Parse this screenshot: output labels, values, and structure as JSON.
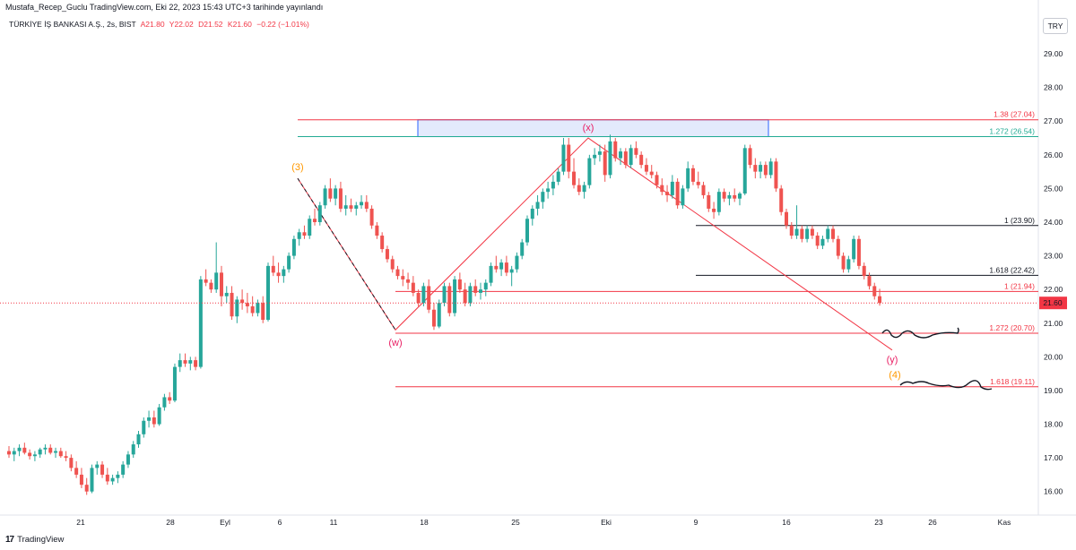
{
  "header": {
    "publisher": "Mustafa_Recep_Guclu TradingView.com, Eki 22, 2023 15:43 UTC+3 tarihinde yayınlandı"
  },
  "symbol": {
    "name": "TÜRKİYE İŞ BANKASI A.Ş., 2s, BIST",
    "open": "A21.80",
    "high": "Y22.02",
    "low": "D21.52",
    "close": "K21.60",
    "change": "−0.22 (−1.01%)"
  },
  "currency": "TRY",
  "footer": {
    "brand": "TradingView",
    "logo_glyph": "17"
  },
  "colors": {
    "up": "#26a69a",
    "down": "#ef5350",
    "fib_red": "#f23645",
    "fib_teal": "#22ab94",
    "fib_gray": "#131722",
    "zone_fill": "#e3eafc",
    "zone_border": "#2962ff",
    "wave_orange": "#ff9800",
    "wave_pink": "#e91e63",
    "last_price": "#f23645"
  },
  "chart_data": {
    "type": "candlestick",
    "interval": "2s",
    "x_ticks": [
      "21",
      "28",
      "Eyl",
      "6",
      "11",
      "18",
      "25",
      "Eki",
      "9",
      "16",
      "23",
      "26",
      "Kas"
    ],
    "y_ticks": [
      "29.00",
      "28.00",
      "27.00",
      "26.00",
      "25.00",
      "24.00",
      "23.00",
      "22.00",
      "21.00",
      "20.00",
      "19.00",
      "18.00",
      "17.00",
      "16.00"
    ],
    "ylim": [
      15.3,
      30.2
    ],
    "last_price": 21.6,
    "last_price_label": "21.60",
    "candles": [
      [
        17.2,
        17.35,
        17.0,
        17.1
      ],
      [
        17.1,
        17.3,
        16.9,
        17.2
      ],
      [
        17.2,
        17.4,
        17.05,
        17.3
      ],
      [
        17.3,
        17.45,
        17.1,
        17.15
      ],
      [
        17.15,
        17.25,
        16.95,
        17.05
      ],
      [
        17.05,
        17.2,
        16.9,
        17.1
      ],
      [
        17.1,
        17.3,
        17.0,
        17.25
      ],
      [
        17.25,
        17.4,
        17.1,
        17.3
      ],
      [
        17.3,
        17.4,
        17.1,
        17.15
      ],
      [
        17.15,
        17.3,
        17.0,
        17.2
      ],
      [
        17.2,
        17.3,
        17.0,
        17.05
      ],
      [
        17.05,
        17.2,
        16.9,
        17.0
      ],
      [
        17.0,
        17.1,
        16.6,
        16.7
      ],
      [
        16.7,
        16.9,
        16.4,
        16.5
      ],
      [
        16.5,
        16.7,
        16.1,
        16.2
      ],
      [
        16.2,
        16.4,
        15.9,
        16.0
      ],
      [
        16.0,
        16.8,
        15.95,
        16.7
      ],
      [
        16.7,
        16.9,
        16.5,
        16.8
      ],
      [
        16.8,
        16.9,
        16.4,
        16.5
      ],
      [
        16.5,
        16.7,
        16.2,
        16.3
      ],
      [
        16.3,
        16.5,
        16.2,
        16.4
      ],
      [
        16.4,
        16.6,
        16.25,
        16.5
      ],
      [
        16.5,
        16.9,
        16.4,
        16.8
      ],
      [
        16.8,
        17.2,
        16.7,
        17.1
      ],
      [
        17.1,
        17.5,
        17.0,
        17.4
      ],
      [
        17.4,
        17.8,
        17.3,
        17.7
      ],
      [
        17.7,
        18.2,
        17.6,
        18.1
      ],
      [
        18.1,
        18.4,
        17.9,
        18.2
      ],
      [
        18.2,
        18.4,
        17.9,
        18.0
      ],
      [
        18.0,
        18.6,
        17.95,
        18.5
      ],
      [
        18.5,
        18.9,
        18.4,
        18.8
      ],
      [
        18.8,
        18.95,
        18.6,
        18.7
      ],
      [
        18.7,
        19.8,
        18.65,
        19.7
      ],
      [
        19.7,
        20.1,
        19.55,
        19.9
      ],
      [
        19.9,
        20.1,
        19.7,
        19.8
      ],
      [
        19.8,
        20.0,
        19.6,
        19.9
      ],
      [
        19.9,
        20.0,
        19.6,
        19.7
      ],
      [
        19.7,
        22.4,
        19.65,
        22.3
      ],
      [
        22.3,
        22.6,
        22.1,
        22.2
      ],
      [
        22.2,
        22.3,
        21.9,
        22.0
      ],
      [
        22.0,
        23.4,
        21.9,
        22.5
      ],
      [
        22.5,
        22.7,
        21.5,
        21.8
      ],
      [
        21.8,
        22.1,
        21.6,
        21.9
      ],
      [
        21.9,
        22.1,
        21.1,
        21.2
      ],
      [
        21.2,
        21.8,
        21.0,
        21.7
      ],
      [
        21.7,
        22.0,
        21.4,
        21.6
      ],
      [
        21.6,
        21.9,
        21.3,
        21.5
      ],
      [
        21.5,
        21.8,
        21.2,
        21.3
      ],
      [
        21.3,
        21.7,
        21.2,
        21.6
      ],
      [
        21.6,
        21.8,
        21.0,
        21.1
      ],
      [
        21.1,
        22.8,
        21.05,
        22.7
      ],
      [
        22.7,
        23.0,
        22.4,
        22.5
      ],
      [
        22.5,
        22.8,
        22.2,
        22.4
      ],
      [
        22.4,
        22.7,
        22.2,
        22.6
      ],
      [
        22.6,
        23.1,
        22.5,
        23.0
      ],
      [
        23.0,
        23.6,
        22.9,
        23.5
      ],
      [
        23.5,
        23.8,
        23.3,
        23.7
      ],
      [
        23.7,
        23.9,
        23.5,
        23.6
      ],
      [
        23.6,
        24.2,
        23.5,
        24.1
      ],
      [
        24.1,
        24.4,
        23.9,
        24.0
      ],
      [
        24.0,
        24.6,
        23.9,
        24.5
      ],
      [
        24.5,
        25.1,
        24.4,
        25.0
      ],
      [
        25.0,
        25.3,
        24.6,
        24.7
      ],
      [
        24.7,
        25.1,
        24.5,
        25.0
      ],
      [
        25.0,
        25.2,
        24.3,
        24.4
      ],
      [
        24.4,
        24.8,
        24.2,
        24.5
      ],
      [
        24.5,
        24.7,
        24.3,
        24.4
      ],
      [
        24.4,
        24.6,
        24.2,
        24.5
      ],
      [
        24.5,
        24.8,
        24.4,
        24.6
      ],
      [
        24.6,
        24.8,
        24.3,
        24.4
      ],
      [
        24.4,
        24.5,
        23.8,
        23.9
      ],
      [
        23.9,
        24.0,
        23.5,
        23.6
      ],
      [
        23.6,
        23.7,
        23.1,
        23.2
      ],
      [
        23.2,
        23.3,
        22.8,
        22.9
      ],
      [
        22.9,
        23.0,
        22.5,
        22.6
      ],
      [
        22.6,
        22.7,
        22.3,
        22.4
      ],
      [
        22.4,
        22.6,
        22.1,
        22.3
      ],
      [
        22.3,
        22.5,
        22.0,
        22.2
      ],
      [
        22.2,
        22.4,
        21.8,
        21.9
      ],
      [
        21.9,
        22.0,
        21.5,
        21.6
      ],
      [
        21.6,
        22.2,
        21.5,
        22.1
      ],
      [
        22.1,
        22.3,
        21.3,
        21.4
      ],
      [
        21.4,
        21.6,
        20.8,
        20.9
      ],
      [
        20.9,
        21.7,
        20.85,
        21.6
      ],
      [
        21.6,
        22.2,
        21.5,
        22.1
      ],
      [
        22.1,
        22.2,
        21.2,
        21.3
      ],
      [
        21.3,
        22.4,
        21.2,
        22.3
      ],
      [
        22.3,
        22.5,
        21.9,
        22.0
      ],
      [
        22.0,
        22.2,
        21.5,
        21.6
      ],
      [
        21.6,
        22.2,
        21.5,
        22.1
      ],
      [
        22.1,
        22.3,
        21.8,
        21.9
      ],
      [
        21.9,
        22.2,
        21.7,
        22.0
      ],
      [
        22.0,
        22.3,
        21.8,
        22.2
      ],
      [
        22.2,
        22.8,
        22.1,
        22.7
      ],
      [
        22.7,
        23.0,
        22.5,
        22.6
      ],
      [
        22.6,
        22.9,
        22.4,
        22.8
      ],
      [
        22.8,
        23.0,
        22.4,
        22.5
      ],
      [
        22.5,
        22.7,
        22.1,
        22.6
      ],
      [
        22.6,
        23.1,
        22.5,
        23.0
      ],
      [
        23.0,
        23.5,
        22.9,
        23.4
      ],
      [
        23.4,
        24.2,
        23.3,
        24.1
      ],
      [
        24.1,
        24.5,
        23.9,
        24.4
      ],
      [
        24.4,
        24.8,
        24.2,
        24.6
      ],
      [
        24.6,
        25.0,
        24.4,
        24.9
      ],
      [
        24.9,
        25.2,
        24.7,
        25.0
      ],
      [
        25.0,
        25.4,
        24.8,
        25.2
      ],
      [
        25.2,
        25.6,
        25.1,
        25.5
      ],
      [
        25.5,
        26.5,
        25.4,
        26.3
      ],
      [
        26.3,
        26.5,
        25.3,
        25.5
      ],
      [
        25.5,
        25.9,
        25.0,
        25.1
      ],
      [
        25.1,
        25.3,
        24.8,
        24.9
      ],
      [
        24.9,
        25.2,
        24.7,
        25.1
      ],
      [
        25.1,
        26.0,
        25.0,
        25.9
      ],
      [
        25.9,
        26.2,
        25.7,
        26.0
      ],
      [
        26.0,
        26.3,
        25.8,
        26.1
      ],
      [
        26.1,
        26.3,
        25.2,
        25.4
      ],
      [
        25.4,
        26.6,
        25.3,
        26.4
      ],
      [
        26.4,
        26.5,
        25.8,
        25.9
      ],
      [
        25.9,
        26.2,
        25.7,
        26.1
      ],
      [
        26.1,
        26.2,
        25.6,
        25.7
      ],
      [
        25.7,
        26.3,
        25.6,
        26.2
      ],
      [
        26.2,
        26.4,
        25.9,
        26.0
      ],
      [
        26.0,
        26.1,
        25.6,
        25.7
      ],
      [
        25.7,
        25.9,
        25.4,
        25.5
      ],
      [
        25.5,
        25.7,
        25.3,
        25.4
      ],
      [
        25.4,
        25.5,
        25.0,
        25.1
      ],
      [
        25.1,
        25.3,
        24.8,
        24.9
      ],
      [
        24.9,
        25.1,
        24.6,
        24.8
      ],
      [
        24.8,
        25.4,
        24.7,
        25.2
      ],
      [
        25.2,
        25.3,
        24.4,
        24.5
      ],
      [
        24.5,
        25.1,
        24.4,
        25.0
      ],
      [
        25.0,
        25.8,
        24.9,
        25.6
      ],
      [
        25.6,
        25.7,
        25.1,
        25.2
      ],
      [
        25.2,
        25.5,
        25.0,
        25.1
      ],
      [
        25.1,
        25.2,
        24.7,
        24.8
      ],
      [
        24.8,
        24.9,
        24.3,
        24.4
      ],
      [
        24.4,
        24.6,
        24.1,
        24.3
      ],
      [
        24.3,
        25.0,
        24.2,
        24.9
      ],
      [
        24.9,
        25.0,
        24.6,
        24.7
      ],
      [
        24.7,
        24.9,
        24.5,
        24.8
      ],
      [
        24.8,
        25.0,
        24.6,
        24.7
      ],
      [
        24.7,
        24.9,
        24.5,
        24.85
      ],
      [
        24.85,
        26.3,
        24.8,
        26.2
      ],
      [
        26.2,
        26.3,
        25.6,
        25.7
      ],
      [
        25.7,
        25.9,
        25.3,
        25.5
      ],
      [
        25.5,
        25.8,
        25.3,
        25.7
      ],
      [
        25.7,
        25.8,
        25.3,
        25.4
      ],
      [
        25.4,
        25.9,
        25.3,
        25.8
      ],
      [
        25.8,
        25.9,
        24.9,
        25.0
      ],
      [
        25.0,
        25.1,
        24.2,
        24.3
      ],
      [
        24.3,
        24.4,
        23.8,
        23.9
      ],
      [
        23.9,
        24.0,
        23.5,
        23.6
      ],
      [
        23.6,
        24.5,
        23.5,
        23.8
      ],
      [
        23.8,
        23.9,
        23.4,
        23.5
      ],
      [
        23.5,
        23.9,
        23.4,
        23.8
      ],
      [
        23.8,
        23.9,
        23.5,
        23.6
      ],
      [
        23.6,
        23.7,
        23.2,
        23.3
      ],
      [
        23.3,
        23.6,
        23.2,
        23.5
      ],
      [
        23.5,
        23.9,
        23.4,
        23.8
      ],
      [
        23.8,
        23.9,
        23.4,
        23.5
      ],
      [
        23.5,
        23.6,
        22.9,
        23.0
      ],
      [
        23.0,
        23.1,
        22.5,
        22.6
      ],
      [
        22.6,
        23.0,
        22.5,
        22.9
      ],
      [
        22.9,
        23.6,
        22.8,
        23.5
      ],
      [
        23.5,
        23.6,
        22.6,
        22.7
      ],
      [
        22.7,
        22.8,
        22.3,
        22.4
      ],
      [
        22.4,
        22.5,
        22.0,
        22.1
      ],
      [
        22.1,
        22.2,
        21.7,
        21.8
      ],
      [
        21.8,
        22.02,
        21.52,
        21.6
      ]
    ],
    "fib_levels": [
      {
        "label": "1.38 (27.04)",
        "value": 27.04,
        "color": "#f23645"
      },
      {
        "label": "1.272 (26.54)",
        "value": 26.54,
        "color": "#22ab94"
      },
      {
        "label": "1 (23.90)",
        "value": 23.9,
        "color": "#131722"
      },
      {
        "label": "1.618 (22.42)",
        "value": 22.42,
        "color": "#131722"
      },
      {
        "label": "1 (21.94)",
        "value": 21.94,
        "color": "#f23645"
      },
      {
        "label": "1.272 (20.70)",
        "value": 20.7,
        "color": "#f23645"
      },
      {
        "label": "1.618 (19.11)",
        "value": 19.11,
        "color": "#f23645"
      }
    ],
    "zone": {
      "top": 27.04,
      "bottom": 26.54
    },
    "wave_labels": [
      {
        "text": "(3)",
        "color": "#ff9800"
      },
      {
        "text": "(w)",
        "color": "#e91e63"
      },
      {
        "text": "(x)",
        "color": "#e91e63"
      },
      {
        "text": "(y)",
        "color": "#e91e63"
      },
      {
        "text": "(4)",
        "color": "#ff9800"
      }
    ]
  }
}
